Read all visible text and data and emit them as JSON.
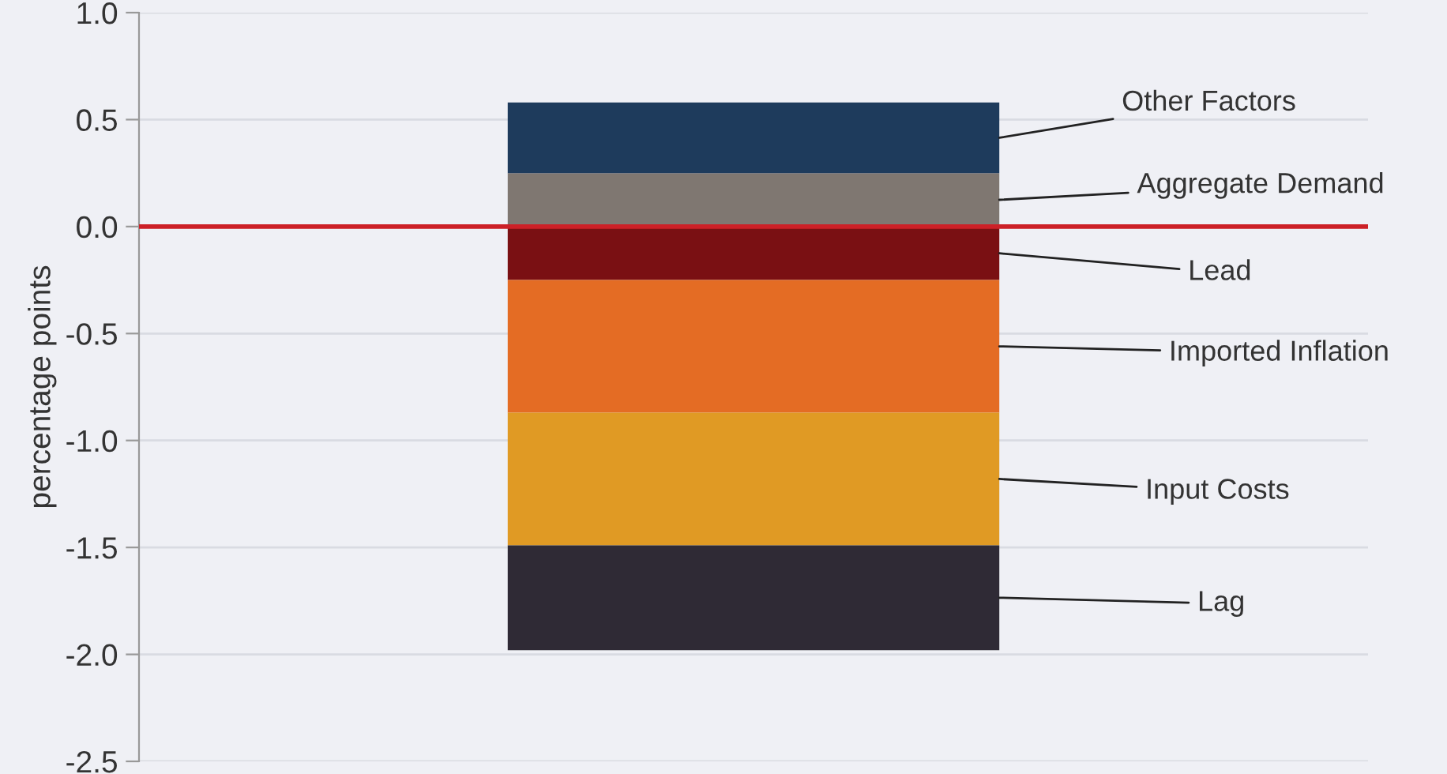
{
  "chart_data": {
    "type": "bar",
    "stacked": true,
    "ylabel": "percentage points",
    "categories": [
      null
    ],
    "series": [
      {
        "name": "Aggregate Demand",
        "color": "#7f7771",
        "values": [
          0.25
        ]
      },
      {
        "name": "Other Factors",
        "color": "#1e3b5c",
        "values": [
          0.33
        ]
      },
      {
        "name": "Lead",
        "color": "#7a1013",
        "values": [
          -0.25
        ]
      },
      {
        "name": "Imported Inflation",
        "color": "#e46c24",
        "values": [
          -0.62
        ]
      },
      {
        "name": "Input Costs",
        "color": "#e09a24",
        "values": [
          -0.62
        ]
      },
      {
        "name": "Lag",
        "color": "#2f2a35",
        "values": [
          -0.49
        ]
      }
    ],
    "ylim": [
      -2.5,
      1.0
    ],
    "yticks": [
      {
        "value": -2.5,
        "label": "-2.5"
      },
      {
        "value": -2.0,
        "label": "-2.0"
      },
      {
        "value": -1.5,
        "label": "-1.5"
      },
      {
        "value": -1.0,
        "label": "-1.0"
      },
      {
        "value": -0.5,
        "label": "-0.5"
      },
      {
        "value": 0.0,
        "label": "0.0"
      },
      {
        "value": 0.5,
        "label": "0.5"
      },
      {
        "value": 1.0,
        "label": "1.0"
      }
    ],
    "ref_lines": [
      {
        "axis": "y",
        "value": 0,
        "color": "#cc2027"
      }
    ],
    "grid": "y",
    "legend": false
  }
}
